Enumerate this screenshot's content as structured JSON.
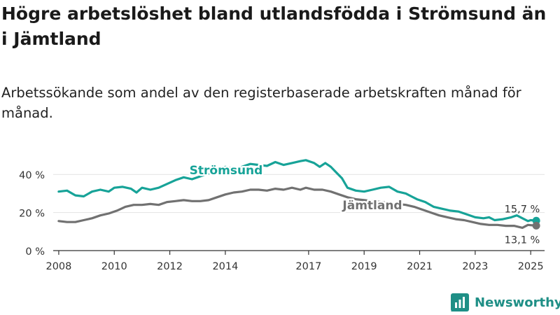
{
  "title": "Högre arbetslöshet bland utlandsfödda i Strömsund än i Jämtland",
  "subtitle": "Arbetssökande som andel av den registerbaserade arbetskraften månad för månad.",
  "brand": "Newsworthy",
  "colors": {
    "stromsund": "#17a398",
    "jamtland": "#717171",
    "axis": "#333333",
    "grid": "#e2e2e2",
    "brand": "#1f8f86"
  },
  "icons": {
    "brand": "newsworthy-logo-icon"
  },
  "chart_data": {
    "type": "line",
    "xlim": [
      2007.8,
      2025.5
    ],
    "ylim": [
      0,
      50
    ],
    "y_ticks": [
      0,
      20,
      40
    ],
    "y_tick_labels": [
      "0 %",
      "20 %",
      "40 %"
    ],
    "x_ticks": [
      2008,
      2010,
      2012,
      2014,
      2017,
      2019,
      2021,
      2023,
      2025
    ],
    "x_tick_labels": [
      "2008",
      "2010",
      "2012",
      "2014",
      "2017",
      "2019",
      "2021",
      "2023",
      "2025"
    ],
    "grid": "horizontal",
    "series": [
      {
        "name": "Strömsund",
        "color": "#17a398",
        "end_label": "15,7 %",
        "points": [
          [
            2008.0,
            31
          ],
          [
            2008.3,
            31.5
          ],
          [
            2008.6,
            29
          ],
          [
            2008.9,
            28.5
          ],
          [
            2009.2,
            31
          ],
          [
            2009.5,
            32
          ],
          [
            2009.8,
            31
          ],
          [
            2010.0,
            33
          ],
          [
            2010.3,
            33.5
          ],
          [
            2010.6,
            32.5
          ],
          [
            2010.8,
            30.5
          ],
          [
            2011.0,
            33
          ],
          [
            2011.3,
            32
          ],
          [
            2011.6,
            33
          ],
          [
            2011.9,
            35
          ],
          [
            2012.2,
            37
          ],
          [
            2012.5,
            38.5
          ],
          [
            2012.8,
            37.5
          ],
          [
            2013.1,
            39
          ],
          [
            2013.4,
            40.5
          ],
          [
            2013.7,
            42
          ],
          [
            2014.0,
            44
          ],
          [
            2014.3,
            43
          ],
          [
            2014.6,
            44
          ],
          [
            2014.9,
            45.5
          ],
          [
            2015.2,
            45
          ],
          [
            2015.5,
            44.5
          ],
          [
            2015.8,
            46.5
          ],
          [
            2016.1,
            45
          ],
          [
            2016.4,
            46
          ],
          [
            2016.7,
            47
          ],
          [
            2016.9,
            47.5
          ],
          [
            2017.2,
            46
          ],
          [
            2017.4,
            44
          ],
          [
            2017.6,
            46
          ],
          [
            2017.8,
            44
          ],
          [
            2018.0,
            41
          ],
          [
            2018.2,
            38
          ],
          [
            2018.4,
            33
          ],
          [
            2018.7,
            31.5
          ],
          [
            2019.0,
            31
          ],
          [
            2019.3,
            32
          ],
          [
            2019.6,
            33
          ],
          [
            2019.9,
            33.5
          ],
          [
            2020.2,
            31
          ],
          [
            2020.5,
            30
          ],
          [
            2020.7,
            28.5
          ],
          [
            2020.9,
            27
          ],
          [
            2021.2,
            25.5
          ],
          [
            2021.5,
            23
          ],
          [
            2021.8,
            22
          ],
          [
            2022.1,
            21
          ],
          [
            2022.4,
            20.5
          ],
          [
            2022.7,
            19
          ],
          [
            2023.0,
            17.5
          ],
          [
            2023.3,
            17
          ],
          [
            2023.5,
            17.5
          ],
          [
            2023.7,
            16
          ],
          [
            2024.0,
            16.5
          ],
          [
            2024.3,
            17.5
          ],
          [
            2024.5,
            18.5
          ],
          [
            2024.7,
            17
          ],
          [
            2024.9,
            15.5
          ],
          [
            2025.0,
            16
          ],
          [
            2025.2,
            15.7
          ]
        ]
      },
      {
        "name": "Jämtland",
        "color": "#717171",
        "end_label": "13,1 %",
        "points": [
          [
            2008.0,
            15.5
          ],
          [
            2008.3,
            15
          ],
          [
            2008.6,
            15
          ],
          [
            2008.9,
            16
          ],
          [
            2009.2,
            17
          ],
          [
            2009.5,
            18.5
          ],
          [
            2009.8,
            19.5
          ],
          [
            2010.1,
            21
          ],
          [
            2010.4,
            23
          ],
          [
            2010.7,
            24
          ],
          [
            2011.0,
            24
          ],
          [
            2011.3,
            24.5
          ],
          [
            2011.6,
            24
          ],
          [
            2011.9,
            25.5
          ],
          [
            2012.2,
            26
          ],
          [
            2012.5,
            26.5
          ],
          [
            2012.8,
            26
          ],
          [
            2013.1,
            26
          ],
          [
            2013.4,
            26.5
          ],
          [
            2013.7,
            28
          ],
          [
            2014.0,
            29.5
          ],
          [
            2014.3,
            30.5
          ],
          [
            2014.6,
            31
          ],
          [
            2014.9,
            32
          ],
          [
            2015.2,
            32
          ],
          [
            2015.5,
            31.5
          ],
          [
            2015.8,
            32.5
          ],
          [
            2016.1,
            32
          ],
          [
            2016.4,
            33
          ],
          [
            2016.7,
            32
          ],
          [
            2016.9,
            33
          ],
          [
            2017.2,
            32
          ],
          [
            2017.5,
            32
          ],
          [
            2017.8,
            31
          ],
          [
            2018.1,
            29.5
          ],
          [
            2018.4,
            28
          ],
          [
            2018.7,
            27
          ],
          [
            2019.0,
            26.5
          ],
          [
            2019.3,
            26
          ],
          [
            2019.6,
            25.5
          ],
          [
            2019.9,
            25
          ],
          [
            2020.2,
            24.5
          ],
          [
            2020.5,
            24
          ],
          [
            2020.8,
            23
          ],
          [
            2021.1,
            21.5
          ],
          [
            2021.4,
            20
          ],
          [
            2021.7,
            18.5
          ],
          [
            2022.0,
            17.5
          ],
          [
            2022.3,
            16.5
          ],
          [
            2022.6,
            16
          ],
          [
            2022.9,
            15
          ],
          [
            2023.2,
            14
          ],
          [
            2023.5,
            13.5
          ],
          [
            2023.8,
            13.5
          ],
          [
            2024.1,
            13
          ],
          [
            2024.4,
            13
          ],
          [
            2024.7,
            12
          ],
          [
            2024.9,
            13.5
          ],
          [
            2025.2,
            13.1
          ]
        ]
      }
    ],
    "series_labels": [
      {
        "text": "Strömsund",
        "series": "Strömsund"
      },
      {
        "text": "Jämtland",
        "series": "Jämtland"
      }
    ]
  }
}
